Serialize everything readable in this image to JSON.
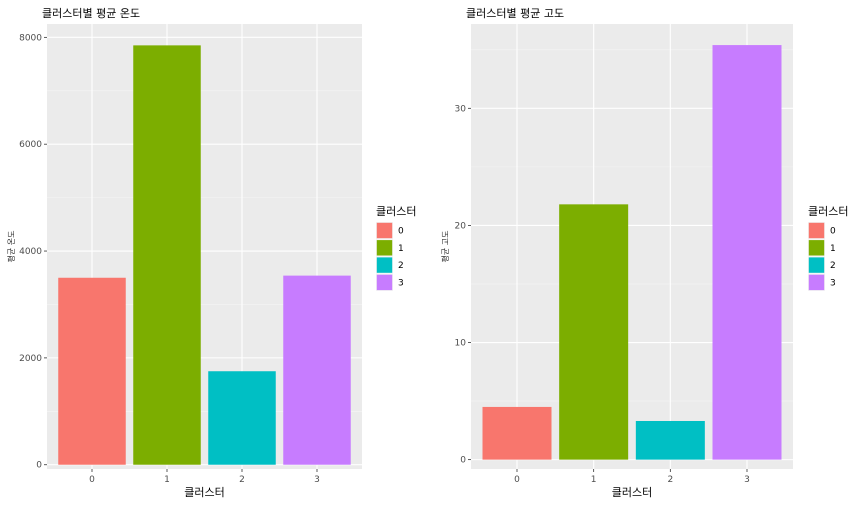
{
  "chart_data": [
    {
      "type": "bar",
      "title": "클러스터별 평균 온도",
      "xlabel": "클러스터",
      "ylabel": "평균 온도",
      "categories": [
        "0",
        "1",
        "2",
        "3"
      ],
      "values": [
        3500,
        7850,
        1750,
        3540
      ],
      "ylim": [
        -80,
        8250
      ],
      "yticks": [
        0,
        2000,
        4000,
        6000,
        8000
      ],
      "grid": true,
      "legend": {
        "title": "클러스터",
        "placement": "right",
        "entries": [
          "0",
          "1",
          "2",
          "3"
        ]
      },
      "colors": [
        "#F8766D",
        "#7CAE00",
        "#00BFC4",
        "#C77CFF"
      ]
    },
    {
      "type": "bar",
      "title": "클러스터별 평균 고도",
      "xlabel": "클러스터",
      "ylabel": "평균 고도",
      "categories": [
        "0",
        "1",
        "2",
        "3"
      ],
      "values": [
        4.5,
        21.8,
        3.3,
        35.4
      ],
      "ylim": [
        -0.8,
        37.2
      ],
      "yticks": [
        0,
        10,
        20,
        30
      ],
      "grid": true,
      "legend": {
        "title": "클러스터",
        "placement": "right",
        "entries": [
          "0",
          "1",
          "2",
          "3"
        ]
      },
      "colors": [
        "#F8766D",
        "#7CAE00",
        "#00BFC4",
        "#C77CFF"
      ]
    }
  ]
}
